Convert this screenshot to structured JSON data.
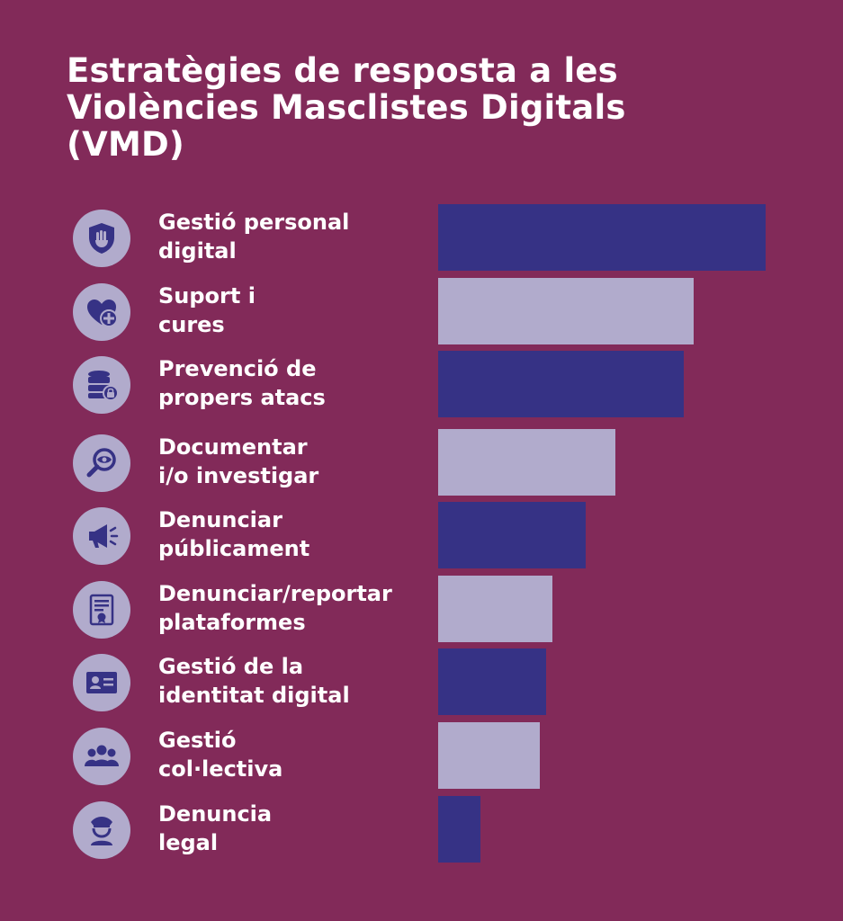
{
  "colors": {
    "background": "#822a59",
    "bar_dark": "#363285",
    "bar_light": "#b1abcc",
    "icon_circle": "#b1abcc",
    "icon_glyph": "#363285",
    "text": "#ffffff"
  },
  "chart_data": {
    "type": "bar",
    "orientation": "horizontal",
    "title": "Estratègies de resposta a les Violències Masclistes Digitals (VMD)",
    "title_lines": [
      "Estratègies de resposta a les",
      "Violències Masclistes Digitals",
      "(VMD)"
    ],
    "xlim": [
      0,
      100
    ],
    "grid": false,
    "categories": [
      "Gestió personal digital",
      "Suport i cures",
      "Prevenció de propers atacs",
      "Documentar i/o investigar",
      "Denunciar públicament",
      "Denunciar/reportar plataformes",
      "Gestió de la identitat digital",
      "Gestió col·lectiva",
      "Denuncia legal"
    ],
    "values": [
      100,
      78,
      75,
      54,
      45,
      35,
      33,
      31,
      13
    ],
    "items": [
      {
        "label_lines": [
          "Gestió personal",
          "digital"
        ],
        "icon": "shield-hand-icon",
        "value": 100,
        "tone": "dark"
      },
      {
        "label_lines": [
          "Suport i",
          "cures"
        ],
        "icon": "heart-plus-icon",
        "value": 78,
        "tone": "light"
      },
      {
        "label_lines": [
          "Prevenció de",
          "propers atacs"
        ],
        "icon": "database-lock-icon",
        "value": 75,
        "tone": "dark"
      },
      {
        "label_lines": [
          "Documentar",
          "i/o investigar"
        ],
        "icon": "magnifier-eye-icon",
        "value": 54,
        "tone": "light"
      },
      {
        "label_lines": [
          "Denunciar",
          "públicament"
        ],
        "icon": "megaphone-icon",
        "value": 45,
        "tone": "dark"
      },
      {
        "label_lines": [
          "Denunciar/reportar",
          "plataformes"
        ],
        "icon": "document-seal-icon",
        "value": 35,
        "tone": "light"
      },
      {
        "label_lines": [
          "Gestió de la",
          "identitat digital"
        ],
        "icon": "id-card-icon",
        "value": 33,
        "tone": "dark"
      },
      {
        "label_lines": [
          "Gestió",
          "col·lectiva"
        ],
        "icon": "group-icon",
        "value": 31,
        "tone": "light"
      },
      {
        "label_lines": [
          "Denuncia",
          "legal"
        ],
        "icon": "police-officer-icon",
        "value": 13,
        "tone": "dark"
      }
    ]
  }
}
